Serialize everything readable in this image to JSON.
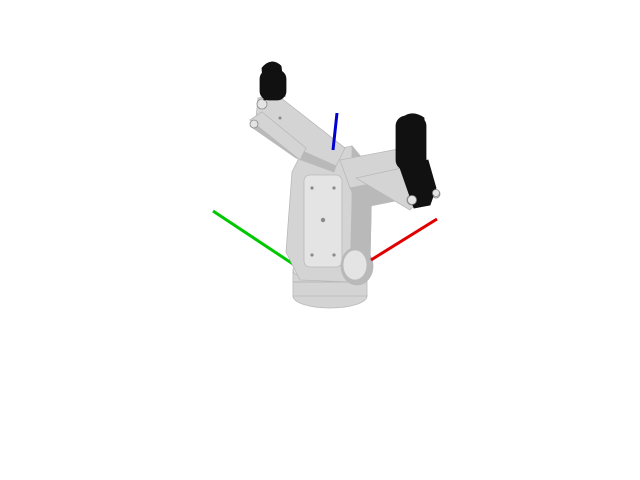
{
  "scene": {
    "background": "#ffffff",
    "object": "parallel-gripper",
    "colors": {
      "body": "#d4d4d4",
      "body_shade": "#b9b9b9",
      "body_light": "#e4e4e4",
      "pad": "#111111",
      "x_axis": "#e00000",
      "y_axis": "#00c800",
      "z_axis": "#0000d0"
    }
  }
}
